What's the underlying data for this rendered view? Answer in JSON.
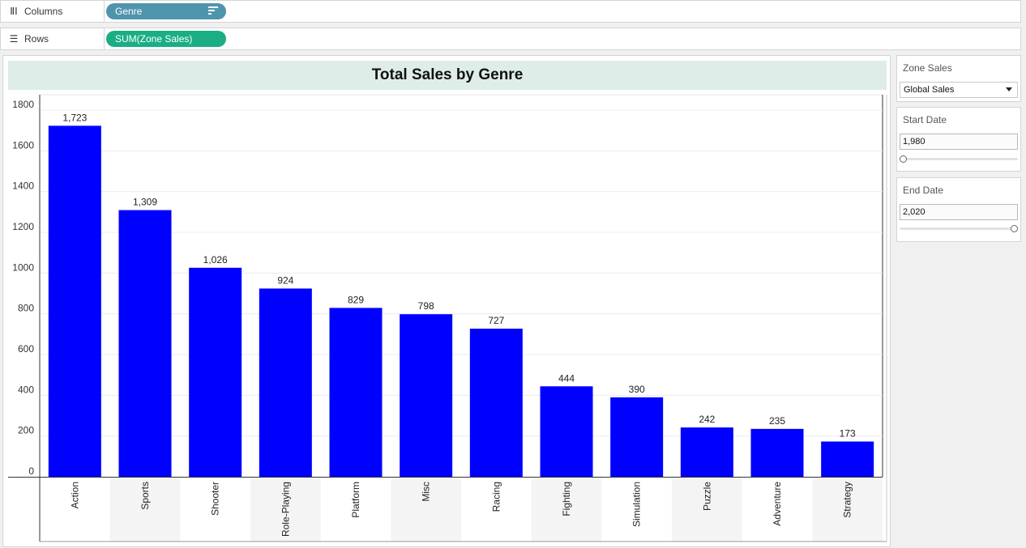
{
  "shelves": {
    "columns": {
      "label": "Columns",
      "icon": "columns-icon",
      "pill": "Genre",
      "pill_color": "#4f94ad"
    },
    "rows": {
      "label": "Rows",
      "icon": "rows-icon",
      "pill": "SUM(Zone Sales)",
      "pill_color": "#1bae84"
    }
  },
  "filters": {
    "zone_sales": {
      "title": "Zone Sales",
      "selected": "Global Sales"
    },
    "start_date": {
      "title": "Start Date",
      "value": "1,980",
      "slider_fraction": 0
    },
    "end_date": {
      "title": "End Date",
      "value": "2,020",
      "slider_fraction": 1
    }
  },
  "chart_data": {
    "type": "bar",
    "title": "Total Sales by Genre",
    "categories": [
      "Action",
      "Sports",
      "Shooter",
      "Role-Playing",
      "Platform",
      "Misc",
      "Racing",
      "Fighting",
      "Simulation",
      "Puzzle",
      "Adventure",
      "Strategy"
    ],
    "values": [
      1723,
      1309,
      1026,
      924,
      829,
      798,
      727,
      444,
      390,
      242,
      235,
      173
    ],
    "value_labels": [
      "1,723",
      "1,309",
      "1,026",
      "924",
      "829",
      "798",
      "727",
      "444",
      "390",
      "242",
      "235",
      "173"
    ],
    "yticks": [
      0,
      200,
      400,
      600,
      800,
      1000,
      1200,
      1400,
      1600,
      1800
    ],
    "ylim": [
      0,
      1800
    ],
    "bar_color": "#0000ff",
    "grid": true
  }
}
